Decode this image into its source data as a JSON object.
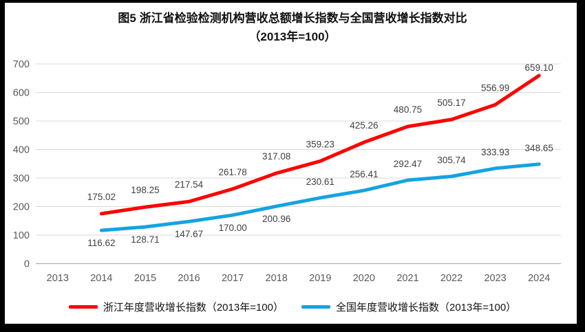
{
  "title": {
    "line1": "图5  浙江省检验检测机构营收总额增长指数与全国营收增长指数对比",
    "line2": "（2013年=100）"
  },
  "chart_data": {
    "type": "line",
    "categories": [
      2013,
      2014,
      2015,
      2016,
      2017,
      2018,
      2019,
      2020,
      2021,
      2022,
      2023,
      2024
    ],
    "series": [
      {
        "name": "浙江年度营收增长指数（2013年=100）",
        "color": "#FF0000",
        "start_year": 2014,
        "values": [
          175.02,
          198.25,
          217.54,
          261.78,
          317.08,
          359.23,
          425.26,
          480.75,
          505.17,
          556.99,
          659.1
        ]
      },
      {
        "name": "全国年度营收增长指数（2013年=100）",
        "color": "#14A3E1",
        "start_year": 2014,
        "values": [
          116.62,
          128.71,
          147.67,
          170.0,
          200.96,
          230.61,
          256.41,
          292.47,
          305.74,
          333.93,
          348.65
        ]
      }
    ],
    "ylim": [
      0,
      700
    ],
    "ytick_step": 100,
    "grid": true,
    "data_labels": true,
    "legend_position": "bottom",
    "xlabel": "",
    "ylabel": ""
  },
  "colors": {
    "grid": "#D9D9D9",
    "axis": "#ADADAD",
    "tick_label": "#595959",
    "data_label": "#404040",
    "frame": "#000000",
    "background": "#FFFFFF"
  }
}
